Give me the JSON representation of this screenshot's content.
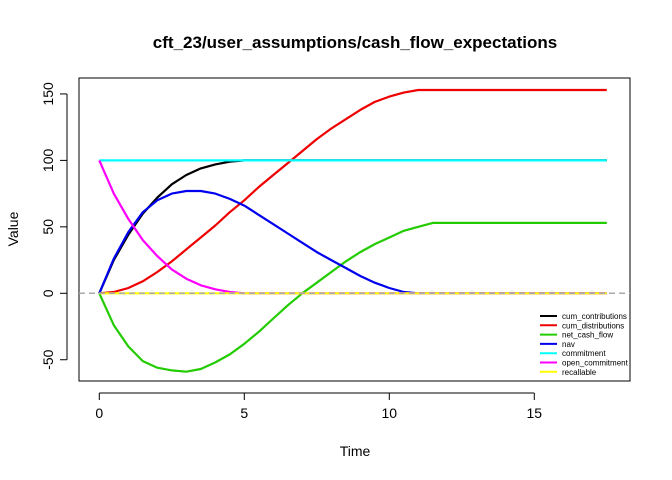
{
  "chart_data": {
    "type": "line",
    "title": "cft_23/user_assumptions/cash_flow_expectations",
    "xlabel": "Time",
    "ylabel": "Value",
    "xlim": [
      -0.7,
      18.3
    ],
    "ylim": [
      -66,
      162
    ],
    "x_ticks": [
      0,
      5,
      10,
      15
    ],
    "y_ticks": [
      -50,
      0,
      50,
      100,
      150
    ],
    "x_tick_labels": [
      "0",
      "5",
      "10",
      "15"
    ],
    "y_tick_labels": [
      "-50",
      "0",
      "50",
      "100",
      "150"
    ],
    "reference_line": {
      "y": 0,
      "style": "dashed",
      "color": "#aaaaaa"
    },
    "legend_position": "bottom-right",
    "x": [
      0,
      0.5,
      1,
      1.5,
      2,
      2.5,
      3,
      3.5,
      4,
      4.5,
      5,
      5.5,
      6,
      6.5,
      7,
      7.5,
      8,
      8.5,
      9,
      9.5,
      10,
      10.5,
      11,
      11.5,
      12,
      12.5,
      13,
      13.5,
      14,
      14.5,
      15,
      15.5,
      16,
      16.5,
      17,
      17.5
    ],
    "series": [
      {
        "name": "cum_contributions",
        "color": "#000000",
        "values": [
          0,
          25,
          44,
          60,
          72,
          82,
          89,
          94,
          97,
          99,
          100,
          100,
          100,
          100,
          100,
          100,
          100,
          100,
          100,
          100,
          100,
          100,
          100,
          100,
          100,
          100,
          100,
          100,
          100,
          100,
          100,
          100,
          100,
          100,
          100,
          100
        ]
      },
      {
        "name": "cum_distributions",
        "color": "#ee0000",
        "values": [
          0,
          1,
          4,
          9,
          16,
          24,
          33,
          42,
          51,
          61,
          70,
          80,
          89,
          98,
          107,
          116,
          124,
          131,
          138,
          144,
          148,
          151,
          153,
          153,
          153,
          153,
          153,
          153,
          153,
          153,
          153,
          153,
          153,
          153,
          153,
          153
        ]
      },
      {
        "name": "net_cash_flow",
        "color": "#22cc00",
        "values": [
          0,
          -24,
          -40,
          -51,
          -56,
          -58,
          -59,
          -57,
          -52,
          -46,
          -38,
          -29,
          -19,
          -9,
          0,
          8,
          16,
          24,
          31,
          37,
          42,
          47,
          50,
          53,
          53,
          53,
          53,
          53,
          53,
          53,
          53,
          53,
          53,
          53,
          53,
          53
        ]
      },
      {
        "name": "nav",
        "color": "#0000ee",
        "values": [
          0,
          26,
          46,
          61,
          70,
          75,
          77,
          77,
          75,
          71,
          66,
          59,
          52,
          45,
          38,
          31,
          25,
          19,
          13,
          8,
          4,
          1,
          0,
          0,
          0,
          0,
          0,
          0,
          0,
          0,
          0,
          0,
          0,
          0,
          0,
          0
        ]
      },
      {
        "name": "commitment",
        "color": "#00ffff",
        "values": [
          100,
          100,
          100,
          100,
          100,
          100,
          100,
          100,
          100,
          100,
          100,
          100,
          100,
          100,
          100,
          100,
          100,
          100,
          100,
          100,
          100,
          100,
          100,
          100,
          100,
          100,
          100,
          100,
          100,
          100,
          100,
          100,
          100,
          100,
          100,
          100
        ]
      },
      {
        "name": "open_commitment",
        "color": "#ff00ff",
        "values": [
          100,
          75,
          56,
          40,
          28,
          18,
          11,
          6,
          3,
          1,
          0,
          0,
          0,
          0,
          0,
          0,
          0,
          0,
          0,
          0,
          0,
          0,
          0,
          0,
          0,
          0,
          0,
          0,
          0,
          0,
          0,
          0,
          0,
          0,
          0,
          0
        ]
      },
      {
        "name": "recallable",
        "color": "#ffff00",
        "values": [
          0,
          0,
          0,
          0,
          0,
          0,
          0,
          0,
          0,
          0,
          0,
          0,
          0,
          0,
          0,
          0,
          0,
          0,
          0,
          0,
          0,
          0,
          0,
          0,
          0,
          0,
          0,
          0,
          0,
          0,
          0,
          0,
          0,
          0,
          0,
          0
        ]
      }
    ]
  }
}
